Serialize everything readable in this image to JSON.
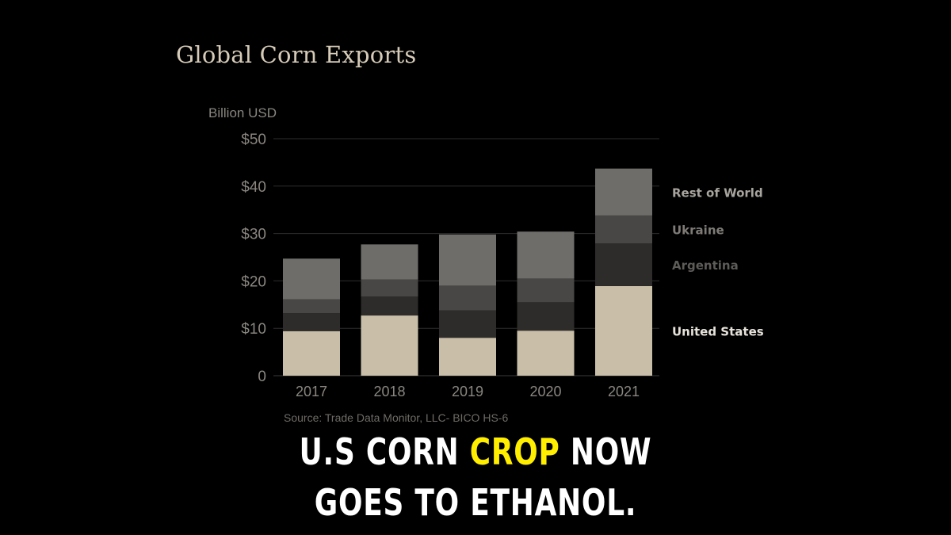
{
  "chart_data": {
    "type": "bar",
    "stacked": true,
    "title": "Global Corn Exports",
    "ylabel": "Billion USD",
    "source": "Source: Trade Data Monitor, LLC- BICO HS-6",
    "categories": [
      "2017",
      "2018",
      "2019",
      "2020",
      "2021"
    ],
    "yticks": [
      "0",
      "$10",
      "$20",
      "$30",
      "$40",
      "$50"
    ],
    "ylim": [
      0,
      50
    ],
    "grid": true,
    "legend_placement": "right",
    "series": [
      {
        "name": "United States",
        "values": [
          9.4,
          12.7,
          8.0,
          9.5,
          18.9
        ],
        "color": "#c9bea8"
      },
      {
        "name": "Argentina",
        "values": [
          3.8,
          4.0,
          5.8,
          6.0,
          9.0
        ],
        "color": "#2e2c2a"
      },
      {
        "name": "Ukraine",
        "values": [
          2.9,
          3.6,
          5.2,
          5.0,
          5.9
        ],
        "color": "#494745"
      },
      {
        "name": "Rest of World",
        "values": [
          8.6,
          7.4,
          10.8,
          9.9,
          9.9
        ],
        "color": "#6f6d6a"
      }
    ]
  },
  "caption": {
    "line1_part1": "U.S CORN ",
    "line1_highlight": "CROP",
    "line1_part2": " NOW",
    "line2": "GOES TO ETHANOL.",
    "highlight_color": "#ffee00"
  }
}
